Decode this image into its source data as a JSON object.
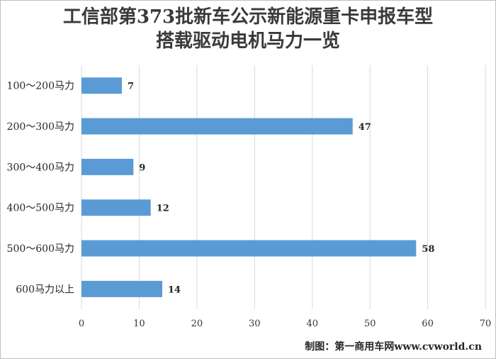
{
  "chart_data": {
    "type": "bar",
    "orientation": "horizontal",
    "title": "工信部第373批新车公示新能源重卡申报车型",
    "subtitle": "搭载驱动电机马力一览",
    "categories": [
      "100～200马力",
      "200～300马力",
      "300～400马力",
      "400～500马力",
      "500～600马力",
      "600马力以上"
    ],
    "values": [
      7,
      47,
      9,
      12,
      58,
      14
    ],
    "xlim": [
      0,
      70
    ],
    "xticks": [
      0,
      10,
      20,
      30,
      40,
      50,
      60,
      70
    ],
    "grid": true,
    "bar_color": "#5b9bd5",
    "gridline_color": "#d9d9d9",
    "legend": "none"
  },
  "credit": "制图：第一商用车网www.cvworld.cn"
}
